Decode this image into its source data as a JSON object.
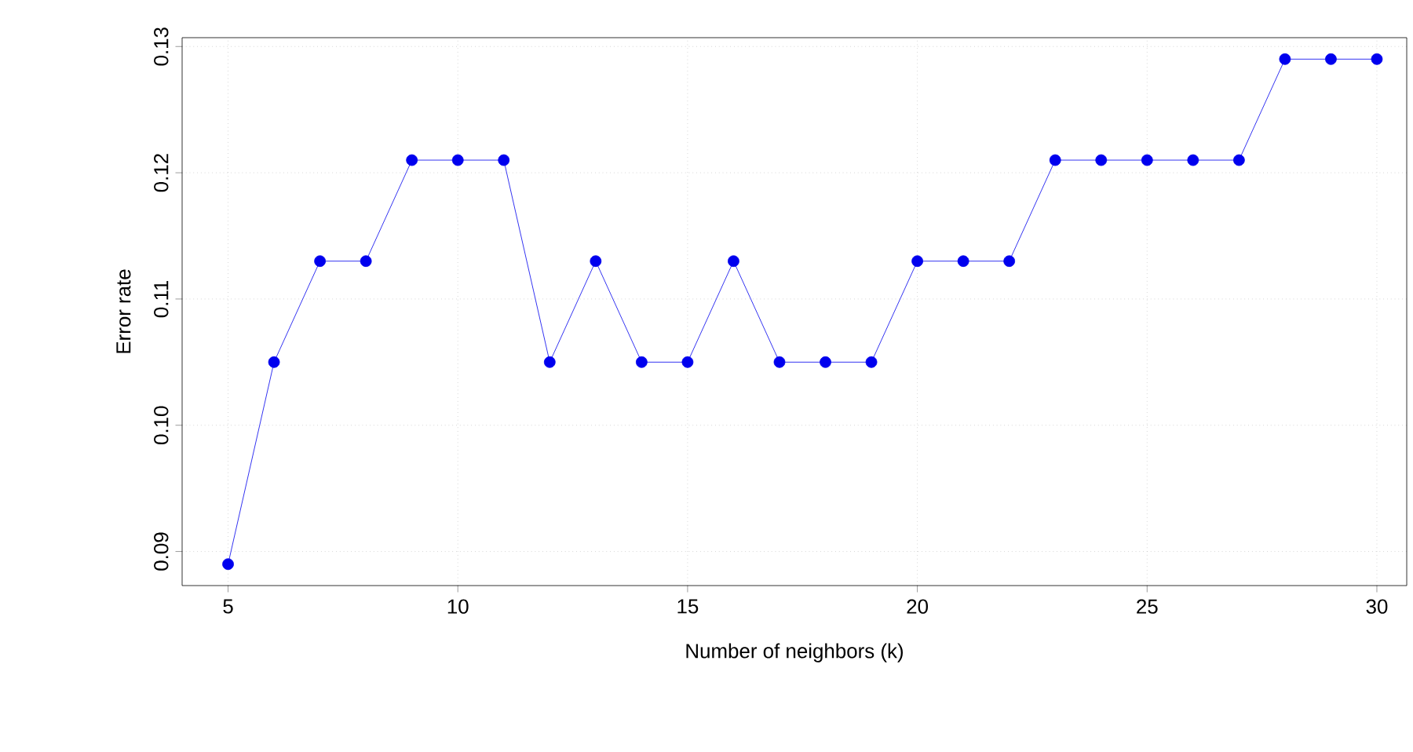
{
  "chart_data": {
    "type": "line",
    "xlabel": "Number of neighbors (k)",
    "ylabel": "Error rate",
    "x": [
      5,
      6,
      7,
      8,
      9,
      10,
      11,
      12,
      13,
      14,
      15,
      16,
      17,
      18,
      19,
      20,
      21,
      22,
      23,
      24,
      25,
      26,
      27,
      28,
      29,
      30
    ],
    "values": [
      0.089,
      0.105,
      0.113,
      0.113,
      0.121,
      0.121,
      0.121,
      0.105,
      0.113,
      0.105,
      0.105,
      0.113,
      0.105,
      0.105,
      0.105,
      0.113,
      0.113,
      0.113,
      0.121,
      0.121,
      0.121,
      0.121,
      0.121,
      0.129,
      0.129,
      0.129
    ],
    "color": "#0000ee",
    "marker": "circle",
    "line_style": "solid",
    "grid": true,
    "xlim": [
      4,
      30.65
    ],
    "ylim": [
      0.0873,
      0.1307
    ],
    "xticks": [
      5,
      10,
      15,
      20,
      25,
      30
    ],
    "yticks": [
      {
        "value": 0.09,
        "label": "0.09"
      },
      {
        "value": 0.1,
        "label": "0.10"
      },
      {
        "value": 0.11,
        "label": "0.11"
      },
      {
        "value": 0.12,
        "label": "0.12"
      },
      {
        "value": 0.13,
        "label": "0.13"
      }
    ]
  }
}
